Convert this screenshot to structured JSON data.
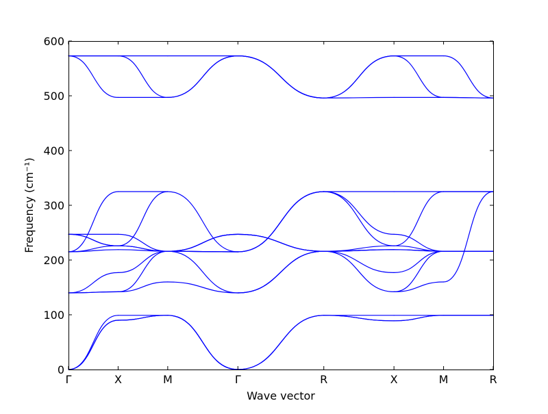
{
  "chart_data": {
    "type": "line",
    "title": "",
    "xlabel": "Wave vector",
    "ylabel": "Frequency (cm⁻¹)",
    "ylim": [
      0,
      600
    ],
    "yticks": [
      0,
      100,
      200,
      300,
      400,
      500,
      600
    ],
    "grid": false,
    "line_color": "#0000ff",
    "high_symmetry_points": [
      {
        "label": "Γ",
        "x": 0
      },
      {
        "label": "X",
        "x": 1
      },
      {
        "label": "M",
        "x": 2
      },
      {
        "label": "Γ",
        "x": 3.414
      },
      {
        "label": "R",
        "x": 5.146
      },
      {
        "label": "X",
        "x": 6.56
      },
      {
        "label": "M",
        "x": 7.56
      },
      {
        "label": "R",
        "x": 8.56
      }
    ],
    "series": [
      {
        "segment": "Γ-X",
        "values": [
          0,
          90
        ]
      },
      {
        "segment": "Γ-X",
        "values": [
          0,
          90
        ]
      },
      {
        "segment": "Γ-X",
        "values": [
          0,
          99
        ]
      },
      {
        "segment": "Γ-X",
        "values": [
          140,
          142
        ]
      },
      {
        "segment": "Γ-X",
        "values": [
          140,
          142
        ]
      },
      {
        "segment": "Γ-X",
        "values": [
          140,
          177
        ]
      },
      {
        "segment": "Γ-X",
        "values": [
          215,
          219
        ]
      },
      {
        "segment": "Γ-X",
        "values": [
          215,
          226
        ]
      },
      {
        "segment": "Γ-X",
        "values": [
          215,
          325
        ]
      },
      {
        "segment": "Γ-X",
        "values": [
          247,
          226
        ]
      },
      {
        "segment": "Γ-X",
        "values": [
          247,
          247
        ]
      },
      {
        "segment": "Γ-X",
        "values": [
          247,
          226
        ]
      },
      {
        "segment": "Γ-X",
        "values": [
          573,
          497
        ]
      },
      {
        "segment": "Γ-X",
        "values": [
          573,
          573
        ]
      },
      {
        "segment": "Γ-X",
        "values": [
          573,
          573
        ]
      },
      {
        "segment": "X-M",
        "values": [
          90,
          99
        ]
      },
      {
        "segment": "X-M",
        "values": [
          90,
          99
        ]
      },
      {
        "segment": "X-M",
        "values": [
          99,
          99
        ]
      },
      {
        "segment": "X-M",
        "values": [
          142,
          160
        ]
      },
      {
        "segment": "X-M",
        "values": [
          142,
          216
        ]
      },
      {
        "segment": "X-M",
        "values": [
          177,
          216
        ]
      },
      {
        "segment": "X-M",
        "values": [
          219,
          216
        ]
      },
      {
        "segment": "X-M",
        "values": [
          226,
          216
        ]
      },
      {
        "segment": "X-M",
        "values": [
          325,
          325
        ]
      },
      {
        "segment": "X-M",
        "values": [
          226,
          325
        ]
      },
      {
        "segment": "X-M",
        "values": [
          247,
          216
        ]
      },
      {
        "segment": "X-M",
        "values": [
          226,
          216
        ]
      },
      {
        "segment": "X-M",
        "values": [
          497,
          497
        ]
      },
      {
        "segment": "X-M",
        "values": [
          573,
          573
        ]
      },
      {
        "segment": "X-M",
        "values": [
          573,
          497
        ]
      },
      {
        "segment": "M-Γ",
        "values": [
          99,
          0
        ]
      },
      {
        "segment": "M-Γ",
        "values": [
          99,
          0
        ]
      },
      {
        "segment": "M-Γ",
        "values": [
          99,
          0
        ]
      },
      {
        "segment": "M-Γ",
        "values": [
          160,
          140
        ]
      },
      {
        "segment": "M-Γ",
        "values": [
          216,
          140
        ]
      },
      {
        "segment": "M-Γ",
        "values": [
          216,
          247
        ]
      },
      {
        "segment": "M-Γ",
        "values": [
          216,
          215
        ]
      },
      {
        "segment": "M-Γ",
        "values": [
          216,
          247
        ]
      },
      {
        "segment": "M-Γ",
        "values": [
          325,
          215
        ]
      },
      {
        "segment": "M-Γ",
        "values": [
          216,
          215
        ]
      },
      {
        "segment": "M-Γ",
        "values": [
          216,
          247
        ]
      },
      {
        "segment": "M-Γ",
        "values": [
          216,
          215
        ]
      },
      {
        "segment": "M-Γ",
        "values": [
          497,
          573
        ]
      },
      {
        "segment": "M-Γ",
        "values": [
          573,
          573
        ]
      },
      {
        "segment": "M-Γ",
        "values": [
          497,
          573
        ]
      },
      {
        "segment": "Γ-R",
        "values": [
          0,
          99
        ]
      },
      {
        "segment": "Γ-R",
        "values": [
          0,
          99
        ]
      },
      {
        "segment": "Γ-R",
        "values": [
          0,
          99
        ]
      },
      {
        "segment": "Γ-R",
        "values": [
          140,
          216
        ]
      },
      {
        "segment": "Γ-R",
        "values": [
          140,
          216
        ]
      },
      {
        "segment": "Γ-R",
        "values": [
          140,
          216
        ]
      },
      {
        "segment": "Γ-R",
        "values": [
          215,
          325
        ]
      },
      {
        "segment": "Γ-R",
        "values": [
          215,
          325
        ]
      },
      {
        "segment": "Γ-R",
        "values": [
          215,
          325
        ]
      },
      {
        "segment": "Γ-R",
        "values": [
          247,
          216
        ]
      },
      {
        "segment": "Γ-R",
        "values": [
          247,
          216
        ]
      },
      {
        "segment": "Γ-R",
        "values": [
          247,
          216
        ]
      },
      {
        "segment": "Γ-R",
        "values": [
          573,
          496
        ]
      },
      {
        "segment": "Γ-R",
        "values": [
          573,
          496
        ]
      },
      {
        "segment": "Γ-R",
        "values": [
          573,
          496
        ]
      },
      {
        "segment": "R-X",
        "values": [
          99,
          89
        ]
      },
      {
        "segment": "R-X",
        "values": [
          99,
          89
        ]
      },
      {
        "segment": "R-X",
        "values": [
          99,
          99
        ]
      },
      {
        "segment": "R-X",
        "values": [
          216,
          142
        ]
      },
      {
        "segment": "R-X",
        "values": [
          216,
          177
        ]
      },
      {
        "segment": "R-X",
        "values": [
          216,
          219
        ]
      },
      {
        "segment": "R-X",
        "values": [
          325,
          226
        ]
      },
      {
        "segment": "R-X",
        "values": [
          325,
          247
        ]
      },
      {
        "segment": "R-X",
        "values": [
          325,
          325
        ]
      },
      {
        "segment": "R-X",
        "values": [
          216,
          226
        ]
      },
      {
        "segment": "R-X",
        "values": [
          216,
          219
        ]
      },
      {
        "segment": "R-X",
        "values": [
          216,
          219
        ]
      },
      {
        "segment": "R-X",
        "values": [
          496,
          497
        ]
      },
      {
        "segment": "R-X",
        "values": [
          496,
          573
        ]
      },
      {
        "segment": "R-X",
        "values": [
          496,
          573
        ]
      },
      {
        "segment": "X-M",
        "values": [
          89,
          99
        ]
      },
      {
        "segment": "X-M",
        "values": [
          89,
          99
        ]
      },
      {
        "segment": "X-M",
        "values": [
          99,
          99
        ]
      },
      {
        "segment": "X-M",
        "values": [
          142,
          160
        ]
      },
      {
        "segment": "X-M",
        "values": [
          142,
          216
        ]
      },
      {
        "segment": "X-M",
        "values": [
          177,
          216
        ]
      },
      {
        "segment": "X-M",
        "values": [
          219,
          216
        ]
      },
      {
        "segment": "X-M",
        "values": [
          226,
          216
        ]
      },
      {
        "segment": "X-M",
        "values": [
          226,
          325
        ]
      },
      {
        "segment": "X-M",
        "values": [
          247,
          216
        ]
      },
      {
        "segment": "X-M",
        "values": [
          219,
          216
        ]
      },
      {
        "segment": "X-M",
        "values": [
          325,
          325
        ]
      },
      {
        "segment": "X-M",
        "values": [
          497,
          497
        ]
      },
      {
        "segment": "X-M",
        "values": [
          573,
          573
        ]
      },
      {
        "segment": "X-M",
        "values": [
          573,
          497
        ]
      },
      {
        "segment": "M-R",
        "values": [
          99,
          99
        ]
      },
      {
        "segment": "M-R",
        "values": [
          99,
          99
        ]
      },
      {
        "segment": "M-R",
        "values": [
          99,
          99
        ]
      },
      {
        "segment": "M-R",
        "values": [
          160,
          325
        ]
      },
      {
        "segment": "M-R",
        "values": [
          216,
          216
        ]
      },
      {
        "segment": "M-R",
        "values": [
          216,
          216
        ]
      },
      {
        "segment": "M-R",
        "values": [
          216,
          216
        ]
      },
      {
        "segment": "M-R",
        "values": [
          216,
          216
        ]
      },
      {
        "segment": "M-R",
        "values": [
          325,
          325
        ]
      },
      {
        "segment": "M-R",
        "values": [
          216,
          216
        ]
      },
      {
        "segment": "M-R",
        "values": [
          216,
          216
        ]
      },
      {
        "segment": "M-R",
        "values": [
          325,
          325
        ]
      },
      {
        "segment": "M-R",
        "values": [
          497,
          496
        ]
      },
      {
        "segment": "M-R",
        "values": [
          573,
          496
        ]
      },
      {
        "segment": "M-R",
        "values": [
          497,
          496
        ]
      }
    ]
  }
}
